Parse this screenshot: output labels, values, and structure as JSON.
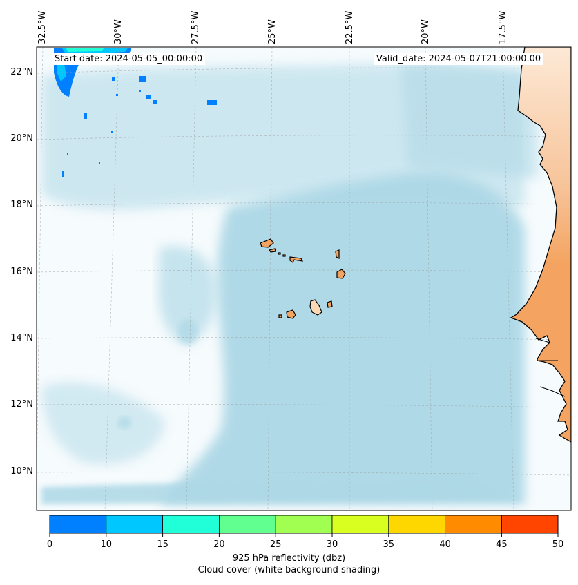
{
  "map": {
    "start_date": "Start date: 2024-05-05_00:00:00",
    "valid_date": "Valid_date: 2024-05-07T21:00:00.00",
    "lat_labels": [
      "22°N",
      "20°N",
      "18°N",
      "16°N",
      "14°N",
      "12°N",
      "10°N"
    ],
    "lon_labels": [
      "32.5°W",
      "30°W",
      "27.5°W",
      "25°W",
      "22.5°W",
      "20°W",
      "17.5°W"
    ],
    "region": "Cape Verde Islands and West African coast"
  },
  "colorbar": {
    "ticks": [
      "0",
      "10",
      "15",
      "20",
      "25",
      "30",
      "35",
      "40",
      "45",
      "50"
    ],
    "colors": [
      "#007fff",
      "#00c8ff",
      "#20ffd8",
      "#60ff90",
      "#a0ff50",
      "#d8ff20",
      "#ffd700",
      "#ff8c00",
      "#ff4500"
    ],
    "label_line1": "925 hPa reflectivity (dbz)",
    "label_line2": "Cloud cover (white background shading)"
  },
  "colors": {
    "cloud": "#add8e6",
    "land": "#f4a460",
    "coast": "#000000"
  }
}
